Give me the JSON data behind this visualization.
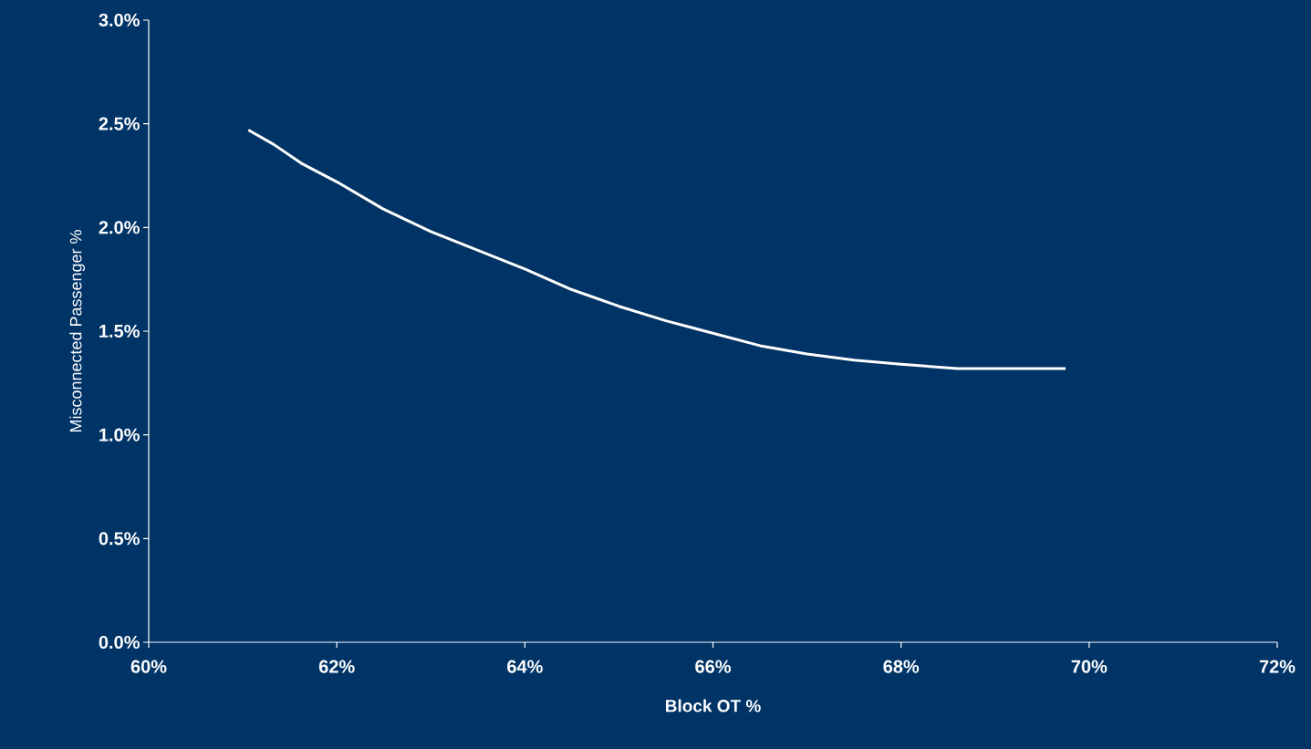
{
  "chart_data": {
    "type": "line",
    "xlabel": "Block OT %",
    "ylabel": "Misconnected Passenger %",
    "color": "#ffffff",
    "x": [
      61.06,
      61.33,
      61.62,
      62.0,
      62.49,
      63.0,
      63.5,
      64.0,
      64.5,
      65.0,
      65.5,
      66.0,
      66.5,
      67.0,
      67.5,
      68.0,
      68.6,
      69.75
    ],
    "values": [
      2.47,
      2.4,
      2.31,
      2.22,
      2.09,
      1.98,
      1.89,
      1.8,
      1.7,
      1.62,
      1.55,
      1.49,
      1.43,
      1.39,
      1.36,
      1.34,
      1.32,
      1.32
    ],
    "xlim": [
      60,
      72
    ],
    "ylim": [
      0,
      3
    ],
    "xticks": [
      {
        "value": 60,
        "label": "60%"
      },
      {
        "value": 62,
        "label": "62%"
      },
      {
        "value": 64,
        "label": "64%"
      },
      {
        "value": 66,
        "label": "66%"
      },
      {
        "value": 68,
        "label": "68%"
      },
      {
        "value": 70,
        "label": "70%"
      },
      {
        "value": 72,
        "label": "72%"
      }
    ],
    "yticks": [
      {
        "value": 0,
        "label": "0.0%"
      },
      {
        "value": 0.5,
        "label": "0.5%"
      },
      {
        "value": 1,
        "label": "1.0%"
      },
      {
        "value": 1.5,
        "label": "1.5%"
      },
      {
        "value": 2,
        "label": "2.0%"
      },
      {
        "value": 2.5,
        "label": "2.5%"
      },
      {
        "value": 3,
        "label": "3.0%"
      }
    ]
  }
}
